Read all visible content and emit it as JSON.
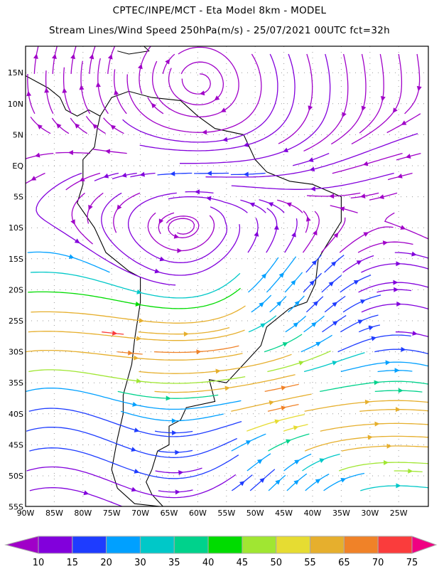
{
  "header": {
    "title": "CPTEC/INPE/MCT -  Eta Model 8km - MODEL",
    "subtitle": "Stream Lines/Wind Speed 250hPa(m/s) - 25/07/2021 00UTC fct=32h"
  },
  "chart_data": {
    "type": "streamline",
    "variable": "Wind Speed 250hPa (m/s)",
    "lon_range": [
      -90,
      -20
    ],
    "lat_range": [
      -55,
      19
    ],
    "x_tick_labels": [
      "90W",
      "85W",
      "80W",
      "75W",
      "70W",
      "65W",
      "60W",
      "55W",
      "50W",
      "45W",
      "40W",
      "35W",
      "30W",
      "25W"
    ],
    "y_tick_labels": [
      "15N",
      "10N",
      "5N",
      "EQ",
      "5S",
      "10S",
      "15S",
      "20S",
      "25S",
      "30S",
      "35S",
      "40S",
      "45S",
      "50S",
      "55S"
    ],
    "grid": true,
    "colorbar": {
      "labels": [
        "10",
        "15",
        "20",
        "30",
        "35",
        "40",
        "45",
        "50",
        "55",
        "65",
        "70",
        "75"
      ],
      "levels": [
        10,
        15,
        20,
        30,
        35,
        40,
        45,
        50,
        55,
        65,
        70,
        75
      ],
      "colors": [
        "#a000c8",
        "#8200dc",
        "#1e3cff",
        "#00a0ff",
        "#00c8c8",
        "#00d28c",
        "#00dc00",
        "#a0e632",
        "#e6dc32",
        "#e6af2d",
        "#f08228",
        "#fa3c3c",
        "#f00082"
      ]
    }
  }
}
